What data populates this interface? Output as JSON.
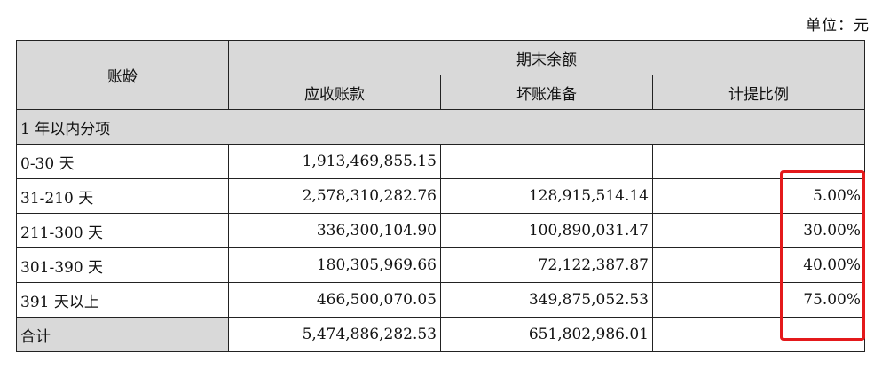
{
  "unit_label": "单位：元",
  "table": {
    "header": {
      "aging": "账龄",
      "group": "期末余额",
      "receivable": "应收账款",
      "bad_debt": "坏账准备",
      "ratio": "计提比例"
    },
    "section_title": "1 年以内分项",
    "rows": [
      {
        "label": "0-30 天",
        "receivable": "1,913,469,855.15",
        "bad_debt": "",
        "ratio": ""
      },
      {
        "label": "31-210 天",
        "receivable": "2,578,310,282.76",
        "bad_debt": "128,915,514.14",
        "ratio": "5.00%"
      },
      {
        "label": "211-300 天",
        "receivable": "336,300,104.90",
        "bad_debt": "100,890,031.47",
        "ratio": "30.00%"
      },
      {
        "label": "301-390 天",
        "receivable": "180,305,969.66",
        "bad_debt": "72,122,387.87",
        "ratio": "40.00%"
      },
      {
        "label": "391 天以上",
        "receivable": "466,500,070.05",
        "bad_debt": "349,875,052.53",
        "ratio": "75.00%"
      }
    ],
    "total": {
      "label": "合计",
      "receivable": "5,474,886,282.53",
      "bad_debt": "651,802,986.01",
      "ratio": ""
    }
  },
  "highlight_color": "#e4191b",
  "header_bg": "#d9d9d9"
}
